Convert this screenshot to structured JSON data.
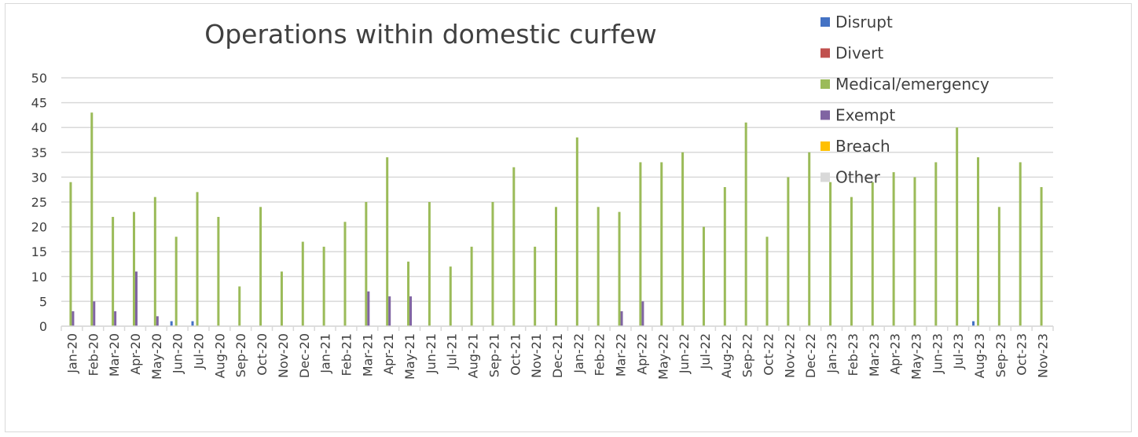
{
  "chart_data": {
    "type": "bar",
    "title": "Operations within domestic curfew",
    "xlabel": "",
    "ylabel": "",
    "ylim": [
      0,
      50
    ],
    "yticks": [
      0,
      5,
      10,
      15,
      20,
      25,
      30,
      35,
      40,
      45,
      50
    ],
    "grid": true,
    "legend_position": "top-right",
    "categories": [
      "Jan-20",
      "Feb-20",
      "Mar-20",
      "Apr-20",
      "May-20",
      "Jun-20",
      "Jul-20",
      "Aug-20",
      "Sep-20",
      "Oct-20",
      "Nov-20",
      "Dec-20",
      "Jan-21",
      "Feb-21",
      "Mar-21",
      "Apr-21",
      "May-21",
      "Jun-21",
      "Jul-21",
      "Aug-21",
      "Sep-21",
      "Oct-21",
      "Nov-21",
      "Dec-21",
      "Jan-22",
      "Feb-22",
      "Mar-22",
      "Apr-22",
      "May-22",
      "Jun-22",
      "Jul-22",
      "Aug-22",
      "Sep-22",
      "Oct-22",
      "Nov-22",
      "Dec-22",
      "Jan-23",
      "Feb-23",
      "Mar-23",
      "Apr-23",
      "May-23",
      "Jun-23",
      "Jul-23",
      "Aug-23",
      "Sep-23",
      "Oct-23",
      "Nov-23"
    ],
    "series": [
      {
        "name": "Disrupt",
        "color": "#4472c4",
        "values": [
          0,
          0,
          0,
          0,
          0,
          1,
          1,
          0,
          0,
          0,
          0,
          0,
          0,
          0,
          0,
          0,
          0,
          0,
          0,
          0,
          0,
          0,
          0,
          0,
          0,
          0,
          0,
          0,
          0,
          0,
          0,
          0,
          0,
          0,
          0,
          0,
          0,
          0,
          0,
          0,
          0,
          0,
          0,
          1,
          0,
          0,
          0
        ]
      },
      {
        "name": "Divert",
        "color": "#c0504d",
        "values": [
          0,
          0,
          0,
          0,
          0,
          0,
          0,
          0,
          0,
          0,
          0,
          0,
          0,
          0,
          0,
          0,
          0,
          0,
          0,
          0,
          0,
          0,
          0,
          0,
          0,
          0,
          0,
          0,
          0,
          0,
          0,
          0,
          0,
          0,
          0,
          0,
          0,
          0,
          0,
          0,
          0,
          0,
          0,
          0,
          0,
          0,
          0
        ]
      },
      {
        "name": "Medical/emergency",
        "color": "#9bbb59",
        "values": [
          29,
          43,
          22,
          23,
          26,
          18,
          27,
          22,
          8,
          24,
          11,
          17,
          16,
          21,
          25,
          34,
          13,
          25,
          12,
          16,
          25,
          32,
          16,
          24,
          38,
          24,
          23,
          33,
          33,
          35,
          20,
          28,
          41,
          18,
          30,
          35,
          29,
          26,
          29,
          31,
          30,
          33,
          40,
          34,
          24,
          33,
          28
        ]
      },
      {
        "name": "Exempt",
        "color": "#8064a2",
        "values": [
          3,
          5,
          3,
          11,
          2,
          0,
          0,
          0,
          0,
          0,
          0,
          0,
          0,
          0,
          7,
          6,
          6,
          0,
          0,
          0,
          0,
          0,
          0,
          0,
          0,
          0,
          3,
          5,
          0,
          0,
          0,
          0,
          0,
          0,
          0,
          0,
          0,
          0,
          0,
          0,
          0,
          0,
          0,
          0,
          0,
          0,
          0
        ]
      },
      {
        "name": "Breach",
        "color": "#ffc000",
        "values": [
          0,
          0,
          0,
          0,
          0,
          0,
          0,
          0,
          0,
          0,
          0,
          0,
          0,
          0,
          0,
          0,
          0,
          0,
          0,
          0,
          0,
          0,
          0,
          0,
          0,
          0,
          0,
          0,
          0,
          0,
          0,
          0,
          0,
          0,
          0,
          0,
          0,
          0,
          0,
          0,
          0,
          0,
          0,
          0,
          0,
          0,
          0
        ]
      },
      {
        "name": "Other",
        "color": "#d9d9d9",
        "values": [
          0,
          0,
          0,
          0,
          0,
          0,
          0,
          0,
          0,
          0,
          0,
          0,
          0,
          0,
          0,
          0,
          0,
          0,
          0,
          0,
          0,
          0,
          0,
          0,
          0,
          0,
          0,
          0,
          0,
          0,
          0,
          0,
          0,
          0,
          0,
          0,
          0,
          0,
          0,
          0,
          0,
          0,
          0,
          0,
          0,
          0,
          0
        ]
      }
    ]
  }
}
